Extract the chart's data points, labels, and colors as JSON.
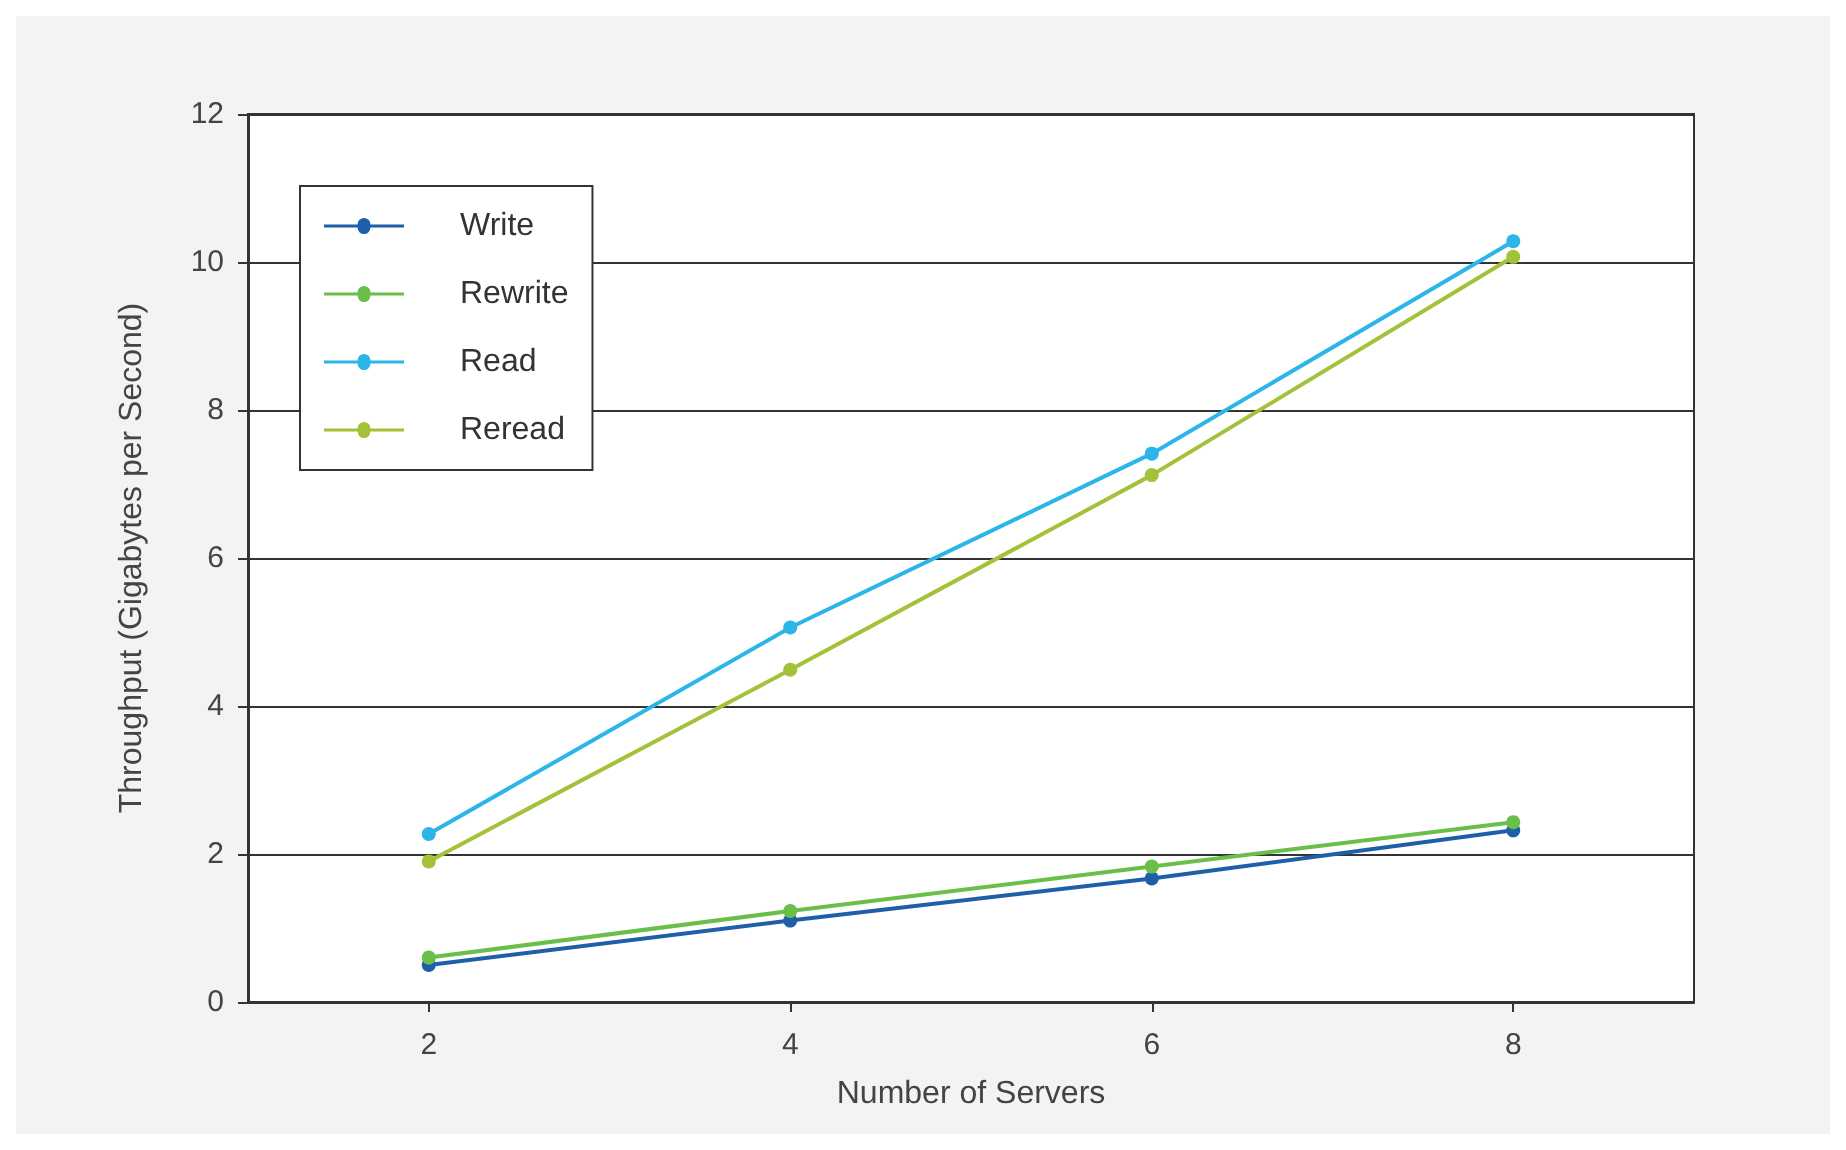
{
  "chart_data": {
    "type": "line",
    "xlabel": "Number of Servers",
    "ylabel": "Throughput (Gigabytes per Second)",
    "x": [
      2,
      4,
      6,
      8
    ],
    "xlim": [
      1,
      9
    ],
    "xticks": [
      2,
      4,
      6,
      8
    ],
    "ylim": [
      0,
      12
    ],
    "yticks": [
      0,
      2,
      4,
      6,
      8,
      10,
      12
    ],
    "grid": "y",
    "legend": "top left",
    "marker": "circle",
    "line_style": "solid",
    "series": [
      {
        "name": "Write",
        "color": "#1f5fa8",
        "values": [
          0.5,
          1.1,
          1.67,
          2.32
        ]
      },
      {
        "name": "Rewrite",
        "color": "#6abf4b",
        "values": [
          0.6,
          1.23,
          1.83,
          2.43
        ]
      },
      {
        "name": "Read",
        "color": "#2bb5e8",
        "values": [
          2.27,
          5.06,
          7.41,
          10.28
        ]
      },
      {
        "name": "Reread",
        "color": "#a3c23a",
        "values": [
          1.9,
          4.49,
          7.12,
          10.07
        ]
      }
    ]
  }
}
